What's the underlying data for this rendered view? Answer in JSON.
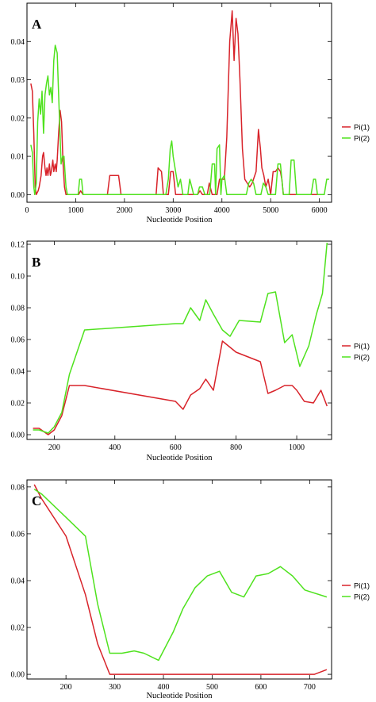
{
  "chart_data": [
    {
      "type": "line",
      "panel_label": "A",
      "xlabel": "Nucleotide Position",
      "ylabel": "",
      "xlim": [
        0,
        6250
      ],
      "ylim": [
        -0.002,
        0.05
      ],
      "x_ticks": [
        0,
        1000,
        2000,
        3000,
        4000,
        5000,
        6000
      ],
      "x_tick_labels": [
        "0",
        "1000",
        "2000",
        "3000",
        "4000",
        "5000",
        "6000"
      ],
      "y_ticks": [
        0,
        0.01,
        0.02,
        0.03,
        0.04
      ],
      "y_tick_labels": [
        "0.00",
        "0.01",
        "0.02",
        "0.03",
        "0.04"
      ],
      "legend_position": "right",
      "grid": false,
      "series": [
        {
          "name": "Pi(1)",
          "color": "#d8232a",
          "points": [
            [
              80,
              0.029
            ],
            [
              110,
              0.027
            ],
            [
              140,
              0.016
            ],
            [
              170,
              0.002
            ],
            [
              190,
              0.0
            ],
            [
              230,
              0.001
            ],
            [
              250,
              0.002
            ],
            [
              290,
              0.005
            ],
            [
              320,
              0.01
            ],
            [
              340,
              0.011
            ],
            [
              370,
              0.007
            ],
            [
              390,
              0.005
            ],
            [
              410,
              0.007
            ],
            [
              430,
              0.005
            ],
            [
              460,
              0.008
            ],
            [
              480,
              0.005
            ],
            [
              500,
              0.006
            ],
            [
              530,
              0.009
            ],
            [
              550,
              0.006
            ],
            [
              580,
              0.008
            ],
            [
              600,
              0.006
            ],
            [
              620,
              0.009
            ],
            [
              650,
              0.016
            ],
            [
              680,
              0.022
            ],
            [
              710,
              0.019
            ],
            [
              740,
              0.008
            ],
            [
              770,
              0.002
            ],
            [
              800,
              0.0
            ],
            [
              1000,
              0.0
            ],
            [
              1060,
              0.0
            ],
            [
              1100,
              0.001
            ],
            [
              1150,
              0.0
            ],
            [
              1650,
              0.0
            ],
            [
              1700,
              0.005
            ],
            [
              1880,
              0.005
            ],
            [
              1930,
              0.0
            ],
            [
              2650,
              0.0
            ],
            [
              2690,
              0.007
            ],
            [
              2760,
              0.006
            ],
            [
              2800,
              0.0
            ],
            [
              2900,
              0.0
            ],
            [
              2950,
              0.006
            ],
            [
              3000,
              0.006
            ],
            [
              3050,
              0.0
            ],
            [
              3500,
              0.0
            ],
            [
              3550,
              0.001
            ],
            [
              3600,
              0.0
            ],
            [
              3700,
              0.0
            ],
            [
              3740,
              0.003
            ],
            [
              3800,
              0.0
            ],
            [
              3900,
              0.0
            ],
            [
              3950,
              0.004
            ],
            [
              4050,
              0.004
            ],
            [
              4100,
              0.015
            ],
            [
              4160,
              0.04
            ],
            [
              4210,
              0.048
            ],
            [
              4250,
              0.035
            ],
            [
              4290,
              0.046
            ],
            [
              4330,
              0.042
            ],
            [
              4370,
              0.03
            ],
            [
              4420,
              0.012
            ],
            [
              4470,
              0.004
            ],
            [
              4520,
              0.003
            ],
            [
              4570,
              0.002
            ],
            [
              4620,
              0.003
            ],
            [
              4700,
              0.006
            ],
            [
              4750,
              0.017
            ],
            [
              4790,
              0.012
            ],
            [
              4820,
              0.007
            ],
            [
              4860,
              0.005
            ],
            [
              4900,
              0.002
            ],
            [
              4950,
              0.004
            ],
            [
              5000,
              0.0
            ],
            [
              5050,
              0.006
            ],
            [
              5100,
              0.006
            ],
            [
              5150,
              0.007
            ],
            [
              5200,
              0.006
            ],
            [
              5230,
              0.004
            ],
            [
              5260,
              0.0
            ],
            [
              6050,
              0.0
            ],
            [
              6100,
              0.0
            ]
          ]
        },
        {
          "name": "Pi(2)",
          "color": "#4fe21e",
          "points": [
            [
              80,
              0.013
            ],
            [
              110,
              0.011
            ],
            [
              140,
              0.002
            ],
            [
              160,
              0.0
            ],
            [
              190,
              0.003
            ],
            [
              220,
              0.019
            ],
            [
              250,
              0.025
            ],
            [
              280,
              0.021
            ],
            [
              310,
              0.027
            ],
            [
              340,
              0.016
            ],
            [
              370,
              0.026
            ],
            [
              400,
              0.029
            ],
            [
              430,
              0.031
            ],
            [
              460,
              0.026
            ],
            [
              490,
              0.028
            ],
            [
              520,
              0.024
            ],
            [
              550,
              0.035
            ],
            [
              580,
              0.039
            ],
            [
              620,
              0.037
            ],
            [
              660,
              0.022
            ],
            [
              700,
              0.008
            ],
            [
              730,
              0.01
            ],
            [
              760,
              0.01
            ],
            [
              780,
              0.006
            ],
            [
              800,
              0.002
            ],
            [
              830,
              0.0
            ],
            [
              1050,
              0.0
            ],
            [
              1080,
              0.004
            ],
            [
              1120,
              0.004
            ],
            [
              1150,
              0.0
            ],
            [
              2850,
              0.0
            ],
            [
              2900,
              0.004
            ],
            [
              2940,
              0.012
            ],
            [
              2970,
              0.014
            ],
            [
              3000,
              0.01
            ],
            [
              3050,
              0.006
            ],
            [
              3100,
              0.002
            ],
            [
              3150,
              0.004
            ],
            [
              3200,
              0.0
            ],
            [
              3300,
              0.0
            ],
            [
              3340,
              0.004
            ],
            [
              3380,
              0.002
            ],
            [
              3420,
              0.0
            ],
            [
              3500,
              0.0
            ],
            [
              3540,
              0.002
            ],
            [
              3600,
              0.002
            ],
            [
              3650,
              0.0
            ],
            [
              3750,
              0.0
            ],
            [
              3800,
              0.008
            ],
            [
              3850,
              0.008
            ],
            [
              3870,
              0.0
            ],
            [
              3900,
              0.012
            ],
            [
              3950,
              0.013
            ],
            [
              3980,
              0.0
            ],
            [
              4000,
              0.004
            ],
            [
              4050,
              0.005
            ],
            [
              4100,
              0.0
            ],
            [
              4500,
              0.0
            ],
            [
              4550,
              0.003
            ],
            [
              4600,
              0.004
            ],
            [
              4650,
              0.003
            ],
            [
              4700,
              0.0
            ],
            [
              4800,
              0.0
            ],
            [
              4850,
              0.003
            ],
            [
              4900,
              0.002
            ],
            [
              4950,
              0.0
            ],
            [
              5100,
              0.0
            ],
            [
              5150,
              0.008
            ],
            [
              5200,
              0.008
            ],
            [
              5260,
              0.0
            ],
            [
              5380,
              0.0
            ],
            [
              5420,
              0.009
            ],
            [
              5480,
              0.009
            ],
            [
              5530,
              0.0
            ],
            [
              5830,
              0.0
            ],
            [
              5880,
              0.004
            ],
            [
              5920,
              0.004
            ],
            [
              5960,
              0.0
            ],
            [
              6100,
              0.0
            ],
            [
              6150,
              0.004
            ],
            [
              6200,
              0.004
            ]
          ]
        }
      ]
    },
    {
      "type": "line",
      "panel_label": "B",
      "xlabel": "Nucleotide Position",
      "ylabel": "",
      "xlim": [
        110,
        1115
      ],
      "ylim": [
        -0.003,
        0.122
      ],
      "x_ticks": [
        200,
        400,
        600,
        800,
        1000
      ],
      "x_tick_labels": [
        "200",
        "400",
        "600",
        "800",
        "1000"
      ],
      "y_ticks": [
        0,
        0.02,
        0.04,
        0.06,
        0.08,
        0.1,
        0.12
      ],
      "y_tick_labels": [
        "0.00",
        "0.02",
        "0.04",
        "0.06",
        "0.08",
        "0.10",
        "0.12"
      ],
      "legend_position": "right",
      "grid": false,
      "series": [
        {
          "name": "Pi(1)",
          "color": "#d8232a",
          "points": [
            [
              130,
              0.004
            ],
            [
              150,
              0.004
            ],
            [
              180,
              0.0
            ],
            [
              200,
              0.003
            ],
            [
              225,
              0.012
            ],
            [
              250,
              0.031
            ],
            [
              300,
              0.031
            ],
            [
              600,
              0.021
            ],
            [
              625,
              0.016
            ],
            [
              650,
              0.025
            ],
            [
              680,
              0.029
            ],
            [
              700,
              0.035
            ],
            [
              725,
              0.028
            ],
            [
              755,
              0.059
            ],
            [
              800,
              0.052
            ],
            [
              880,
              0.046
            ],
            [
              905,
              0.026
            ],
            [
              930,
              0.028
            ],
            [
              960,
              0.031
            ],
            [
              985,
              0.031
            ],
            [
              1000,
              0.028
            ],
            [
              1025,
              0.021
            ],
            [
              1055,
              0.02
            ],
            [
              1080,
              0.028
            ],
            [
              1100,
              0.018
            ]
          ]
        },
        {
          "name": "Pi(2)",
          "color": "#4fe21e",
          "points": [
            [
              130,
              0.003
            ],
            [
              150,
              0.003
            ],
            [
              180,
              0.001
            ],
            [
              200,
              0.005
            ],
            [
              225,
              0.014
            ],
            [
              250,
              0.038
            ],
            [
              300,
              0.066
            ],
            [
              600,
              0.07
            ],
            [
              625,
              0.07
            ],
            [
              650,
              0.08
            ],
            [
              680,
              0.072
            ],
            [
              700,
              0.085
            ],
            [
              725,
              0.076
            ],
            [
              755,
              0.066
            ],
            [
              780,
              0.062
            ],
            [
              810,
              0.072
            ],
            [
              880,
              0.071
            ],
            [
              905,
              0.089
            ],
            [
              930,
              0.09
            ],
            [
              960,
              0.058
            ],
            [
              985,
              0.063
            ],
            [
              1010,
              0.043
            ],
            [
              1040,
              0.056
            ],
            [
              1065,
              0.076
            ],
            [
              1085,
              0.089
            ],
            [
              1100,
              0.121
            ]
          ]
        }
      ]
    },
    {
      "type": "line",
      "panel_label": "C",
      "xlabel": "Nucleotide Position",
      "ylabel": "",
      "xlim": [
        120,
        745
      ],
      "ylim": [
        -0.002,
        0.083
      ],
      "x_ticks": [
        200,
        300,
        400,
        500,
        600,
        700
      ],
      "x_tick_labels": [
        "200",
        "300",
        "400",
        "500",
        "600",
        "700"
      ],
      "y_ticks": [
        0,
        0.02,
        0.04,
        0.06,
        0.08
      ],
      "y_tick_labels": [
        "0.00",
        "0.02",
        "0.04",
        "0.06",
        "0.08"
      ],
      "legend_position": "right",
      "grid": false,
      "series": [
        {
          "name": "Pi(1)",
          "color": "#d8232a",
          "points": [
            [
              135,
              0.081
            ],
            [
              150,
              0.075
            ],
            [
              200,
              0.059
            ],
            [
              240,
              0.034
            ],
            [
              265,
              0.013
            ],
            [
              290,
              0.0
            ],
            [
              710,
              0.0
            ],
            [
              735,
              0.002
            ]
          ]
        },
        {
          "name": "Pi(2)",
          "color": "#4fe21e",
          "points": [
            [
              135,
              0.079
            ],
            [
              150,
              0.077
            ],
            [
              200,
              0.067
            ],
            [
              240,
              0.059
            ],
            [
              265,
              0.03
            ],
            [
              290,
              0.009
            ],
            [
              315,
              0.009
            ],
            [
              340,
              0.01
            ],
            [
              360,
              0.009
            ],
            [
              390,
              0.006
            ],
            [
              420,
              0.018
            ],
            [
              440,
              0.028
            ],
            [
              465,
              0.037
            ],
            [
              490,
              0.042
            ],
            [
              515,
              0.044
            ],
            [
              540,
              0.035
            ],
            [
              565,
              0.033
            ],
            [
              590,
              0.042
            ],
            [
              615,
              0.043
            ],
            [
              640,
              0.046
            ],
            [
              665,
              0.042
            ],
            [
              690,
              0.036
            ],
            [
              735,
              0.033
            ]
          ]
        }
      ]
    }
  ]
}
